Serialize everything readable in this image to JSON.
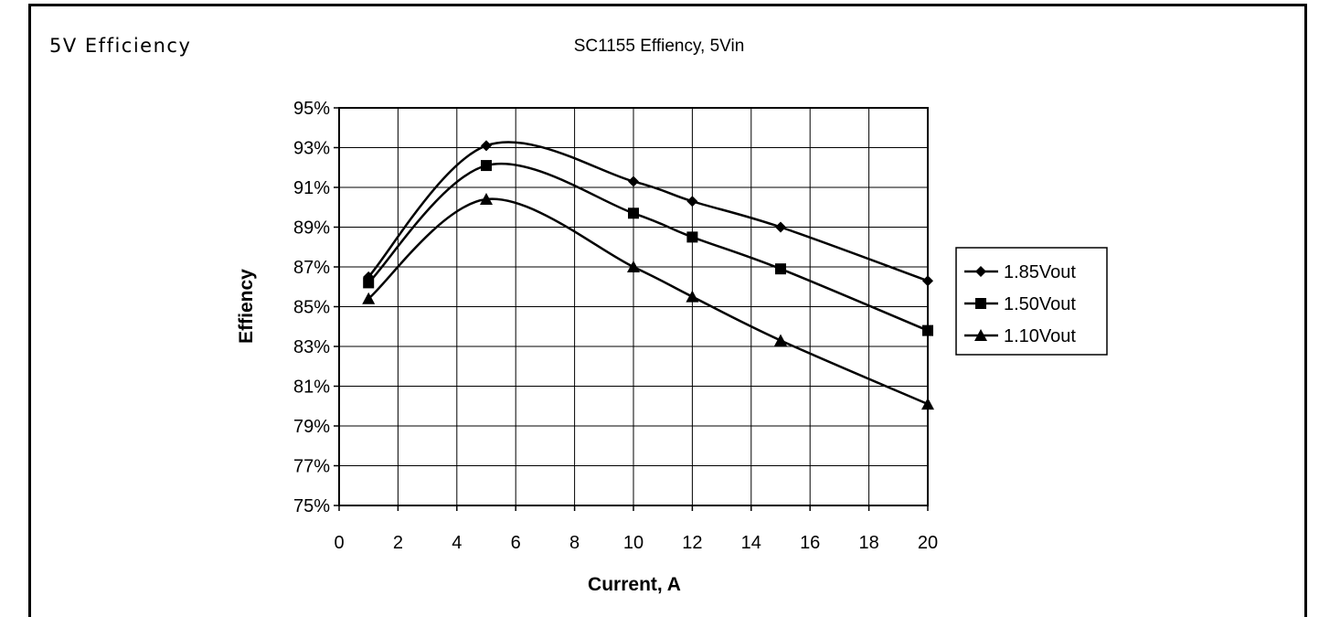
{
  "section_title": "5V Efficiency",
  "chart_data": {
    "type": "line",
    "title": "SC1155 Effiency, 5Vin",
    "xlabel": "Current, A",
    "ylabel": "Effiency",
    "xlim": [
      0,
      20
    ],
    "ylim": [
      75,
      95
    ],
    "xticks": [
      0,
      2,
      4,
      6,
      8,
      10,
      12,
      14,
      16,
      18,
      20
    ],
    "yticks": [
      75,
      77,
      79,
      81,
      83,
      85,
      87,
      89,
      91,
      93,
      95
    ],
    "ytick_labels": [
      "75%",
      "77%",
      "79%",
      "81%",
      "83%",
      "85%",
      "87%",
      "89%",
      "91%",
      "93%",
      "95%"
    ],
    "grid": true,
    "legend_position": "right",
    "series": [
      {
        "name": "1.85Vout",
        "marker": "diamond",
        "x": [
          1,
          5,
          10,
          12,
          15,
          20
        ],
        "y": [
          86.5,
          93.1,
          91.3,
          90.3,
          89.0,
          86.3
        ]
      },
      {
        "name": "1.50Vout",
        "marker": "square",
        "x": [
          1,
          5,
          10,
          12,
          15,
          20
        ],
        "y": [
          86.2,
          92.1,
          89.7,
          88.5,
          86.9,
          83.8
        ]
      },
      {
        "name": "1.10Vout",
        "marker": "triangle",
        "x": [
          1,
          5,
          10,
          12,
          15,
          20
        ],
        "y": [
          85.4,
          90.4,
          87.0,
          85.5,
          83.3,
          80.1
        ]
      }
    ],
    "colors": {
      "line": "#000000",
      "grid": "#000000",
      "background": "#ffffff"
    }
  }
}
